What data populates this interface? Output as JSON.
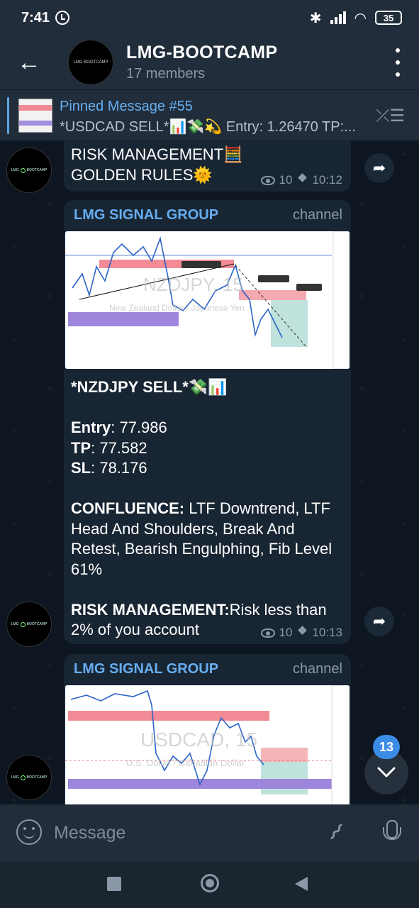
{
  "status": {
    "time": "7:41",
    "battery": "35"
  },
  "header": {
    "back_label": "←",
    "title": "LMG-BOOTCAMP",
    "subtitle": "17 members",
    "avatar_text": "LMG BOOTCAMP"
  },
  "pinned": {
    "title": "Pinned Message #55",
    "preview": "*USDCAD SELL*📊💸💫  Entry: 1.26470 TP:..."
  },
  "messages": [
    {
      "text_line1": "RISK MANAGEMENT🧮",
      "text_line2": "GOLDEN RULES🌞",
      "views": "10",
      "time": "10:12"
    },
    {
      "sender": "LMG SIGNAL GROUP",
      "role": "channel",
      "chart_title": "NZDJPY, 15",
      "chart_subtitle": "New Zealand Dollar / Japanese Yen",
      "heading": "*NZDJPY SELL*💸📊",
      "entry_label": "Entry",
      "entry": ": 77.986",
      "tp_label": "TP",
      "tp": ": 77.582",
      "sl_label": "SL",
      "sl": ": 78.176",
      "confluence_label": "CONFLUENCE:",
      "confluence": " LTF Downtrend, LTF Head And Shoulders, Break And Retest, Bearish Engulphing, Fib Level 61%",
      "risk_label": "RISK MANAGEMENT:",
      "risk": "Risk less than 2% of you account",
      "views": "10",
      "time": "10:13"
    },
    {
      "sender": "LMG SIGNAL GROUP",
      "role": "channel",
      "chart_title": "USDCAD, 15",
      "chart_subtitle": "U.S. Dollar / Canadian Dollar"
    }
  ],
  "composer": {
    "placeholder": "Message"
  },
  "unread_badge": "13",
  "colors": {
    "accent": "#66aef0",
    "badge": "#3a8ce6"
  }
}
